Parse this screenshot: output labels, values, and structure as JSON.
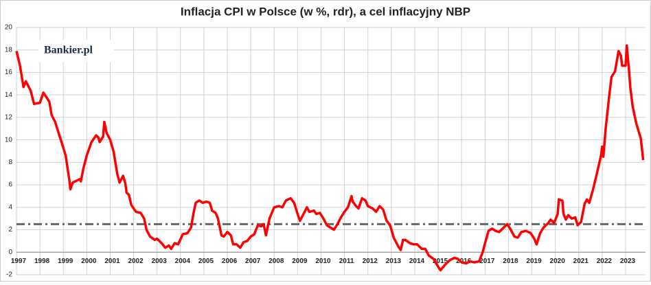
{
  "chart_data": {
    "type": "line",
    "title": "Inflacja CPI w Polsce (w %, rdr), a cel inflacyjny NBP",
    "logo": "Bankier.pl",
    "xlim": [
      1997,
      2023.85
    ],
    "xticks": [
      1997,
      1998,
      1999,
      2000,
      2001,
      2002,
      2003,
      2004,
      2005,
      2006,
      2007,
      2008,
      2009,
      2010,
      2011,
      2012,
      2013,
      2014,
      2015,
      2016,
      2017,
      2018,
      2019,
      2020,
      2021,
      2022,
      2023
    ],
    "ylim": [
      -2,
      20
    ],
    "yticks": [
      -2,
      0,
      2,
      4,
      6,
      8,
      10,
      12,
      14,
      16,
      18,
      20
    ],
    "grid": true,
    "series": [
      {
        "color": "#ff0000",
        "x": [
          1997.0,
          1997.15,
          1997.3,
          1997.4,
          1997.6,
          1997.75,
          1998.0,
          1998.15,
          1998.4,
          1998.5,
          1998.65,
          1998.8,
          1999.0,
          1999.1,
          1999.25,
          1999.3,
          1999.4,
          1999.7,
          1999.75,
          1999.85,
          2000.0,
          2000.2,
          2000.4,
          2000.5,
          2000.55,
          2000.7,
          2000.75,
          2000.85,
          2001.0,
          2001.15,
          2001.3,
          2001.4,
          2001.55,
          2001.65,
          2001.7,
          2001.8,
          2001.9,
          2002.1,
          2002.3,
          2002.45,
          2002.55,
          2002.7,
          2002.9,
          2003.0,
          2003.2,
          2003.35,
          2003.5,
          2003.6,
          2003.75,
          2003.9,
          2004.1,
          2004.3,
          2004.45,
          2004.55,
          2004.65,
          2004.8,
          2004.95,
          2005.1,
          2005.25,
          2005.35,
          2005.5,
          2005.6,
          2005.75,
          2005.85,
          2006.0,
          2006.15,
          2006.25,
          2006.4,
          2006.55,
          2006.7,
          2006.85,
          2007.0,
          2007.15,
          2007.3,
          2007.45,
          2007.55,
          2007.65,
          2007.8,
          2008.0,
          2008.2,
          2008.35,
          2008.5,
          2008.7,
          2008.85,
          2009.0,
          2009.1,
          2009.3,
          2009.4,
          2009.5,
          2009.7,
          2009.8,
          2009.95,
          2010.1,
          2010.25,
          2010.4,
          2010.55,
          2010.7,
          2010.85,
          2011.0,
          2011.15,
          2011.3,
          2011.35,
          2011.5,
          2011.6,
          2011.75,
          2011.9,
          2012.0,
          2012.2,
          2012.35,
          2012.5,
          2012.65,
          2012.8,
          2012.95,
          2013.1,
          2013.3,
          2013.4,
          2013.5,
          2013.6,
          2013.8,
          2013.95,
          2014.1,
          2014.3,
          2014.45,
          2014.6,
          2014.8,
          2015.0,
          2015.1,
          2015.3,
          2015.5,
          2015.7,
          2015.85,
          2016.0,
          2016.2,
          2016.35,
          2016.55,
          2016.75,
          2016.9,
          2017.0,
          2017.15,
          2017.3,
          2017.45,
          2017.6,
          2017.8,
          2017.95,
          2018.1,
          2018.25,
          2018.4,
          2018.55,
          2018.75,
          2018.95,
          2019.1,
          2019.2,
          2019.35,
          2019.5,
          2019.7,
          2019.8,
          2019.95,
          2020.1,
          2020.15,
          2020.3,
          2020.35,
          2020.45,
          2020.55,
          2020.7,
          2020.85,
          2020.95,
          2021.1,
          2021.25,
          2021.35,
          2021.45,
          2021.6,
          2021.75,
          2021.85,
          2021.95,
          2022.0,
          2022.05,
          2022.15,
          2022.3,
          2022.4,
          2022.55,
          2022.7,
          2022.8,
          2022.85,
          2023.0,
          2023.05,
          2023.15,
          2023.2,
          2023.3,
          2023.45,
          2023.55,
          2023.65,
          2023.75
        ],
        "values": [
          17.9,
          16.6,
          14.7,
          15.2,
          14.4,
          13.2,
          13.3,
          14.2,
          13.4,
          12.2,
          11.6,
          10.6,
          9.3,
          8.6,
          6.5,
          5.6,
          6.2,
          6.5,
          6.3,
          7.4,
          8.6,
          9.8,
          10.4,
          10.2,
          9.8,
          10.3,
          11.6,
          10.6,
          10.0,
          8.9,
          7.0,
          6.2,
          6.8,
          6.1,
          5.3,
          5.1,
          4.2,
          3.6,
          3.5,
          3.0,
          2.0,
          1.4,
          1.1,
          1.2,
          0.8,
          0.4,
          0.6,
          0.3,
          0.8,
          0.7,
          1.6,
          1.7,
          2.2,
          3.4,
          4.4,
          4.6,
          4.4,
          4.5,
          4.4,
          3.7,
          3.5,
          3.0,
          1.5,
          1.4,
          1.8,
          1.5,
          0.7,
          0.7,
          0.4,
          0.9,
          1.0,
          1.4,
          1.6,
          2.4,
          2.3,
          2.5,
          1.5,
          3.0,
          4.0,
          4.1,
          4.0,
          4.6,
          4.8,
          4.4,
          3.4,
          2.8,
          3.6,
          4.0,
          3.6,
          3.7,
          3.4,
          3.5,
          3.0,
          2.4,
          2.2,
          2.0,
          2.5,
          3.1,
          3.6,
          4.0,
          5.0,
          4.5,
          4.1,
          3.9,
          4.8,
          4.6,
          4.1,
          3.9,
          3.6,
          4.1,
          3.8,
          2.8,
          2.4,
          1.3,
          0.5,
          0.2,
          1.1,
          1.1,
          0.8,
          0.7,
          0.7,
          0.3,
          0.3,
          -0.3,
          -0.6,
          -1.3,
          -1.6,
          -1.1,
          -0.7,
          -0.5,
          -0.6,
          -0.9,
          -1.0,
          -0.8,
          -0.9,
          -0.8,
          0.0,
          0.8,
          1.9,
          2.1,
          1.9,
          1.8,
          2.2,
          2.5,
          2.0,
          1.4,
          1.3,
          1.8,
          1.9,
          1.7,
          1.2,
          0.7,
          1.7,
          2.2,
          2.6,
          2.9,
          2.6,
          3.4,
          4.7,
          4.6,
          3.4,
          2.9,
          3.3,
          3.0,
          3.1,
          2.4,
          2.7,
          4.3,
          4.7,
          4.4,
          5.5,
          6.8,
          7.7,
          8.6,
          9.4,
          8.5,
          11.0,
          13.9,
          15.6,
          16.1,
          17.9,
          17.5,
          16.6,
          16.6,
          18.4,
          16.1,
          14.7,
          13.0,
          11.5,
          10.8,
          10.1,
          8.2
        ]
      },
      {
        "color": "#666666",
        "dashed": true,
        "x": [
          1997.0,
          2023.85
        ],
        "values": [
          2.5,
          2.5
        ]
      }
    ]
  }
}
